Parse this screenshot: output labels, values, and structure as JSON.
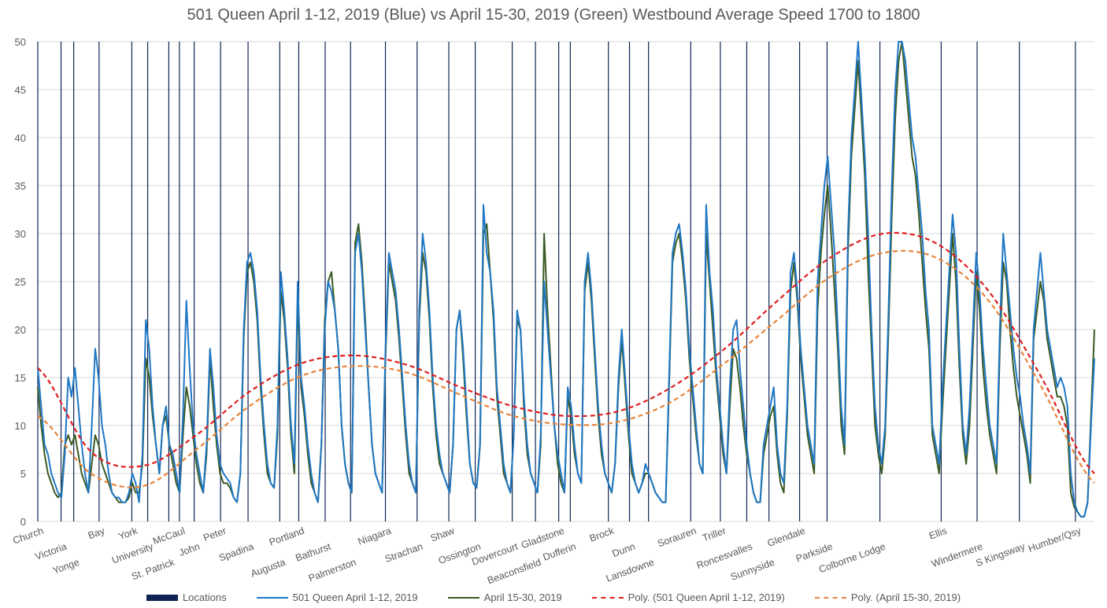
{
  "chart_data": {
    "type": "line",
    "title": "501 Queen April 1-12, 2019 (Blue) vs April 15-30, 2019 (Green) Westbound Average Speed 1700 to 1800",
    "xlabel": "",
    "ylabel": "",
    "ylim": [
      0,
      50
    ],
    "yticks": [
      0,
      5,
      10,
      15,
      20,
      25,
      30,
      35,
      40,
      45,
      50
    ],
    "xlim": [
      0,
      1000
    ],
    "grid": true,
    "legend_position": "bottom",
    "locations": [
      {
        "name": "Church",
        "x": 0
      },
      {
        "name": "Victoria",
        "x": 22
      },
      {
        "name": "Yonge",
        "x": 34
      },
      {
        "name": "Bay",
        "x": 58
      },
      {
        "name": "York",
        "x": 89
      },
      {
        "name": "University",
        "x": 104
      },
      {
        "name": "St. Patrick",
        "x": 124
      },
      {
        "name": "McCaul",
        "x": 134
      },
      {
        "name": "John",
        "x": 148
      },
      {
        "name": "Peter",
        "x": 173
      },
      {
        "name": "Spadina",
        "x": 199
      },
      {
        "name": "Augusta",
        "x": 229
      },
      {
        "name": "Portland",
        "x": 247
      },
      {
        "name": "Bathurst",
        "x": 272
      },
      {
        "name": "Palmerston",
        "x": 296
      },
      {
        "name": "Niagara",
        "x": 329
      },
      {
        "name": "Strachan",
        "x": 359
      },
      {
        "name": "Shaw",
        "x": 389
      },
      {
        "name": "Ossington",
        "x": 414
      },
      {
        "name": "Dovercourt",
        "x": 449
      },
      {
        "name": "Beaconsfield",
        "x": 471
      },
      {
        "name": "Gladstone",
        "x": 493
      },
      {
        "name": "Dufferin",
        "x": 504
      },
      {
        "name": "Brock",
        "x": 540
      },
      {
        "name": "Dunn",
        "x": 560
      },
      {
        "name": "Lansdowne",
        "x": 578
      },
      {
        "name": "Sorauren",
        "x": 618
      },
      {
        "name": "Triller",
        "x": 646
      },
      {
        "name": "Roncesvalles",
        "x": 671
      },
      {
        "name": "Sunnyside",
        "x": 692
      },
      {
        "name": "Glendale",
        "x": 721
      },
      {
        "name": "Parkside",
        "x": 747
      },
      {
        "name": "Colborne Lodge",
        "x": 797
      },
      {
        "name": "Ellis",
        "x": 855
      },
      {
        "name": "Windermere",
        "x": 889
      },
      {
        "name": "S Kingsway",
        "x": 929
      },
      {
        "name": "Humber/Qsy",
        "x": 982
      }
    ],
    "x_step": 5,
    "series": [
      {
        "name": "501 Queen April 1-12, 2019",
        "color": "#1f77c4",
        "style": "solid",
        "values": [
          16,
          12,
          8,
          7,
          5,
          4,
          3,
          2.5,
          7,
          15,
          13,
          16,
          12,
          8,
          5,
          3,
          10,
          18,
          15,
          10,
          8,
          5,
          3,
          2.5,
          2.5,
          2,
          2,
          3,
          5,
          4,
          2,
          7,
          21,
          18,
          12,
          8,
          5,
          10,
          12,
          8,
          7,
          5,
          3,
          11,
          23,
          16,
          10,
          7,
          5,
          3,
          8,
          18,
          14,
          9,
          6,
          5,
          4.5,
          4,
          2.5,
          2,
          5,
          20,
          27,
          28,
          26,
          22,
          15,
          10,
          6,
          4,
          3.5,
          10,
          26,
          22,
          17,
          10,
          6,
          25,
          15,
          12,
          8,
          5,
          3,
          2,
          8,
          20,
          25,
          24,
          22,
          18,
          10,
          6,
          4,
          3,
          28,
          30,
          26,
          20,
          14,
          8,
          5,
          4,
          3,
          18,
          28,
          26,
          24,
          20,
          15,
          10,
          6,
          4,
          3,
          22,
          30,
          27,
          22,
          15,
          10,
          7,
          5,
          4,
          3,
          8,
          20,
          22,
          18,
          12,
          6,
          4,
          3.5,
          8,
          33,
          28,
          26,
          22,
          14,
          10,
          6,
          4,
          3,
          9,
          22,
          20,
          13,
          8,
          5,
          4,
          3,
          9,
          25,
          20,
          15,
          10,
          7,
          5,
          3,
          14,
          12,
          8,
          5,
          4,
          25,
          28,
          24,
          18,
          12,
          8,
          5,
          4,
          3,
          6,
          15,
          20,
          15,
          10,
          6,
          4,
          3,
          4,
          6,
          5,
          4,
          3,
          2.5,
          2,
          2,
          15,
          28,
          30,
          31,
          28,
          24,
          18,
          14,
          10,
          6,
          5,
          33,
          26,
          22,
          16,
          12,
          8,
          5,
          14,
          20,
          21,
          16,
          12,
          8,
          5,
          3,
          2,
          2,
          8,
          10,
          12,
          14,
          8,
          5,
          4,
          12,
          26,
          28,
          24,
          18,
          14,
          10,
          8,
          6,
          25,
          30,
          35,
          38,
          33,
          28,
          20,
          12,
          8,
          30,
          40,
          45,
          50,
          44,
          38,
          30,
          20,
          12,
          8,
          6,
          10,
          22,
          35,
          45,
          50,
          52,
          48,
          44,
          40,
          38,
          34,
          30,
          24,
          20,
          10,
          8,
          6,
          14,
          20,
          26,
          32,
          28,
          18,
          10,
          7,
          12,
          20,
          28,
          24,
          18,
          14,
          10,
          8,
          6,
          20,
          30,
          26,
          22,
          18,
          15,
          13,
          10,
          8,
          5,
          20,
          24,
          28,
          24,
          20,
          18,
          16,
          14,
          15,
          14,
          12,
          5,
          2,
          1,
          0.5,
          0.5,
          2,
          10,
          17
        ]
      },
      {
        "name": "April 15-30, 2019",
        "color": "#3a5a24",
        "style": "solid",
        "values": [
          14,
          10,
          7,
          5,
          4,
          3,
          2.5,
          3,
          8,
          9,
          8,
          9,
          7,
          5,
          4,
          3,
          6,
          9,
          8,
          6,
          5,
          4,
          3,
          2.5,
          2,
          2,
          2,
          2.5,
          4,
          3,
          3,
          6,
          17,
          15,
          11,
          8,
          5,
          10,
          11,
          8,
          6,
          4,
          3,
          9,
          14,
          12,
          9,
          6,
          4,
          3,
          7,
          17,
          12,
          8,
          5,
          4,
          4,
          3.5,
          2.5,
          2,
          5,
          19,
          26,
          27,
          25,
          21,
          14,
          9,
          5,
          4,
          3.5,
          9,
          24,
          21,
          16,
          9,
          5,
          23,
          14,
          11,
          7,
          4,
          3,
          2,
          8,
          21,
          25,
          26,
          22,
          18,
          10,
          6,
          4,
          3,
          29,
          31,
          27,
          21,
          14,
          8,
          5,
          4,
          3,
          17,
          27,
          25,
          23,
          19,
          14,
          9,
          5,
          4,
          3,
          21,
          28,
          26,
          21,
          14,
          9,
          6,
          5,
          4,
          3,
          8,
          20,
          22,
          17,
          11,
          6,
          4,
          3.5,
          8,
          30,
          31,
          26,
          21,
          13,
          9,
          5,
          4,
          3,
          9,
          21,
          20,
          12,
          7,
          5,
          4,
          3,
          8,
          30,
          22,
          16,
          10,
          6,
          4,
          3,
          13,
          11,
          7,
          5,
          4,
          24,
          27,
          23,
          17,
          11,
          7,
          5,
          4,
          3,
          6,
          14,
          19,
          14,
          9,
          5,
          4,
          3,
          4,
          5,
          5,
          4,
          3,
          2.5,
          2,
          2,
          14,
          27,
          29,
          30,
          27,
          23,
          17,
          13,
          9,
          6,
          5,
          30,
          25,
          20,
          15,
          11,
          7,
          5,
          12,
          18,
          17,
          14,
          10,
          7,
          5,
          3,
          2,
          2,
          7,
          9,
          11,
          12,
          7,
          4,
          3,
          11,
          24,
          27,
          23,
          17,
          13,
          9,
          7,
          5,
          22,
          28,
          32,
          35,
          30,
          24,
          18,
          10,
          7,
          28,
          38,
          43,
          48,
          42,
          36,
          26,
          18,
          10,
          7,
          5,
          9,
          20,
          32,
          42,
          48,
          50,
          46,
          42,
          38,
          36,
          32,
          27,
          22,
          18,
          9,
          7,
          5,
          12,
          18,
          24,
          30,
          25,
          16,
          9,
          6,
          10,
          18,
          26,
          22,
          16,
          12,
          9,
          7,
          5,
          18,
          27,
          25,
          20,
          16,
          13,
          11,
          9,
          7,
          4,
          19,
          22,
          25,
          23,
          19,
          17,
          15,
          13,
          13,
          12,
          10,
          3,
          1.5,
          1,
          0.5,
          0.5,
          2,
          11,
          20
        ]
      },
      {
        "name": "Poly. (501 Queen April 1-12, 2019)",
        "color": "#e01e1e",
        "style": "dashed",
        "x": [
          0,
          50,
          100,
          150,
          200,
          250,
          300,
          350,
          400,
          450,
          500,
          550,
          600,
          650,
          700,
          750,
          800,
          850,
          900,
          950,
          1000
        ],
        "values": [
          16,
          7.3,
          5.8,
          9.0,
          13.5,
          16.5,
          17.3,
          16.3,
          14.0,
          12.0,
          11.0,
          11.5,
          14.0,
          18.0,
          23.0,
          27.5,
          30.0,
          29.0,
          24.0,
          15.0,
          5.0
        ]
      },
      {
        "name": "Poly. (April 15-30, 2019)",
        "color": "#e8843a",
        "style": "dashed",
        "x": [
          0,
          50,
          100,
          150,
          200,
          250,
          300,
          350,
          400,
          450,
          500,
          550,
          600,
          650,
          700,
          750,
          800,
          850,
          900,
          950,
          1000
        ],
        "values": [
          11,
          5.0,
          3.7,
          7.5,
          12.0,
          15.2,
          16.2,
          15.5,
          13.2,
          11.0,
          10.1,
          10.4,
          12.5,
          16.5,
          21.0,
          25.5,
          28.0,
          27.5,
          23.0,
          14.0,
          4.0
        ]
      }
    ],
    "legend": [
      {
        "label": "Locations",
        "color": "#0f2454",
        "kind": "bar"
      },
      {
        "label": "501 Queen April 1-12, 2019",
        "color": "#1f77c4",
        "kind": "line"
      },
      {
        "label": "April 15-30, 2019",
        "color": "#3a5a24",
        "kind": "line"
      },
      {
        "label": "Poly. (501 Queen April 1-12, 2019)",
        "color": "#e01e1e",
        "kind": "dash"
      },
      {
        "label": "Poly. (April 15-30, 2019)",
        "color": "#e8843a",
        "kind": "dash"
      }
    ]
  }
}
